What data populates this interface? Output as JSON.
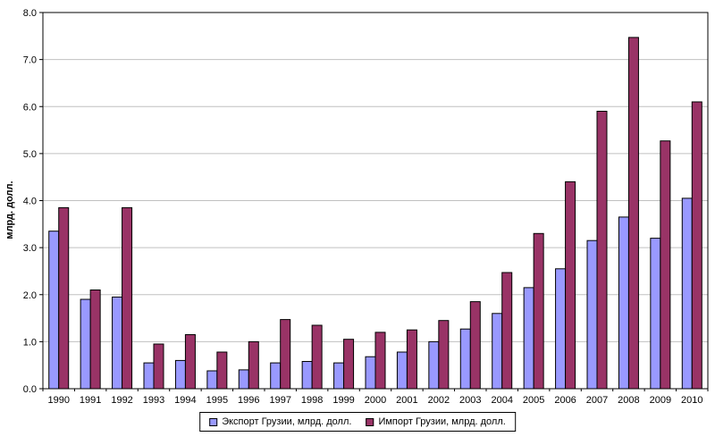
{
  "chart_data": {
    "type": "bar",
    "title": "",
    "xlabel": "",
    "ylabel": "млрд. долл.",
    "ylim": [
      0,
      8
    ],
    "ytick_step": 1,
    "grid": true,
    "legend_position": "bottom",
    "gridline_color": "#c0c0c0",
    "axis_color": "#000000",
    "plot_background": "#ffffff",
    "categories": [
      "1990",
      "1991",
      "1992",
      "1993",
      "1994",
      "1995",
      "1996",
      "1997",
      "1998",
      "1999",
      "2000",
      "2001",
      "2002",
      "2003",
      "2004",
      "2005",
      "2006",
      "2007",
      "2008",
      "2009",
      "2010"
    ],
    "series": [
      {
        "name": "Экспорт Грузии, млрд. долл.",
        "color": "#9999ff",
        "values": [
          3.35,
          1.9,
          1.95,
          0.55,
          0.6,
          0.38,
          0.4,
          0.55,
          0.58,
          0.55,
          0.68,
          0.78,
          1.0,
          1.27,
          1.6,
          2.15,
          2.55,
          3.15,
          3.65,
          3.2,
          4.05
        ]
      },
      {
        "name": "Импорт Грузии, млрд. долл.",
        "color": "#993366",
        "values": [
          3.85,
          2.1,
          3.85,
          0.95,
          1.15,
          0.78,
          1.0,
          1.47,
          1.35,
          1.05,
          1.2,
          1.25,
          1.45,
          1.85,
          2.47,
          3.3,
          4.4,
          5.9,
          7.47,
          5.27,
          6.1
        ]
      }
    ]
  }
}
